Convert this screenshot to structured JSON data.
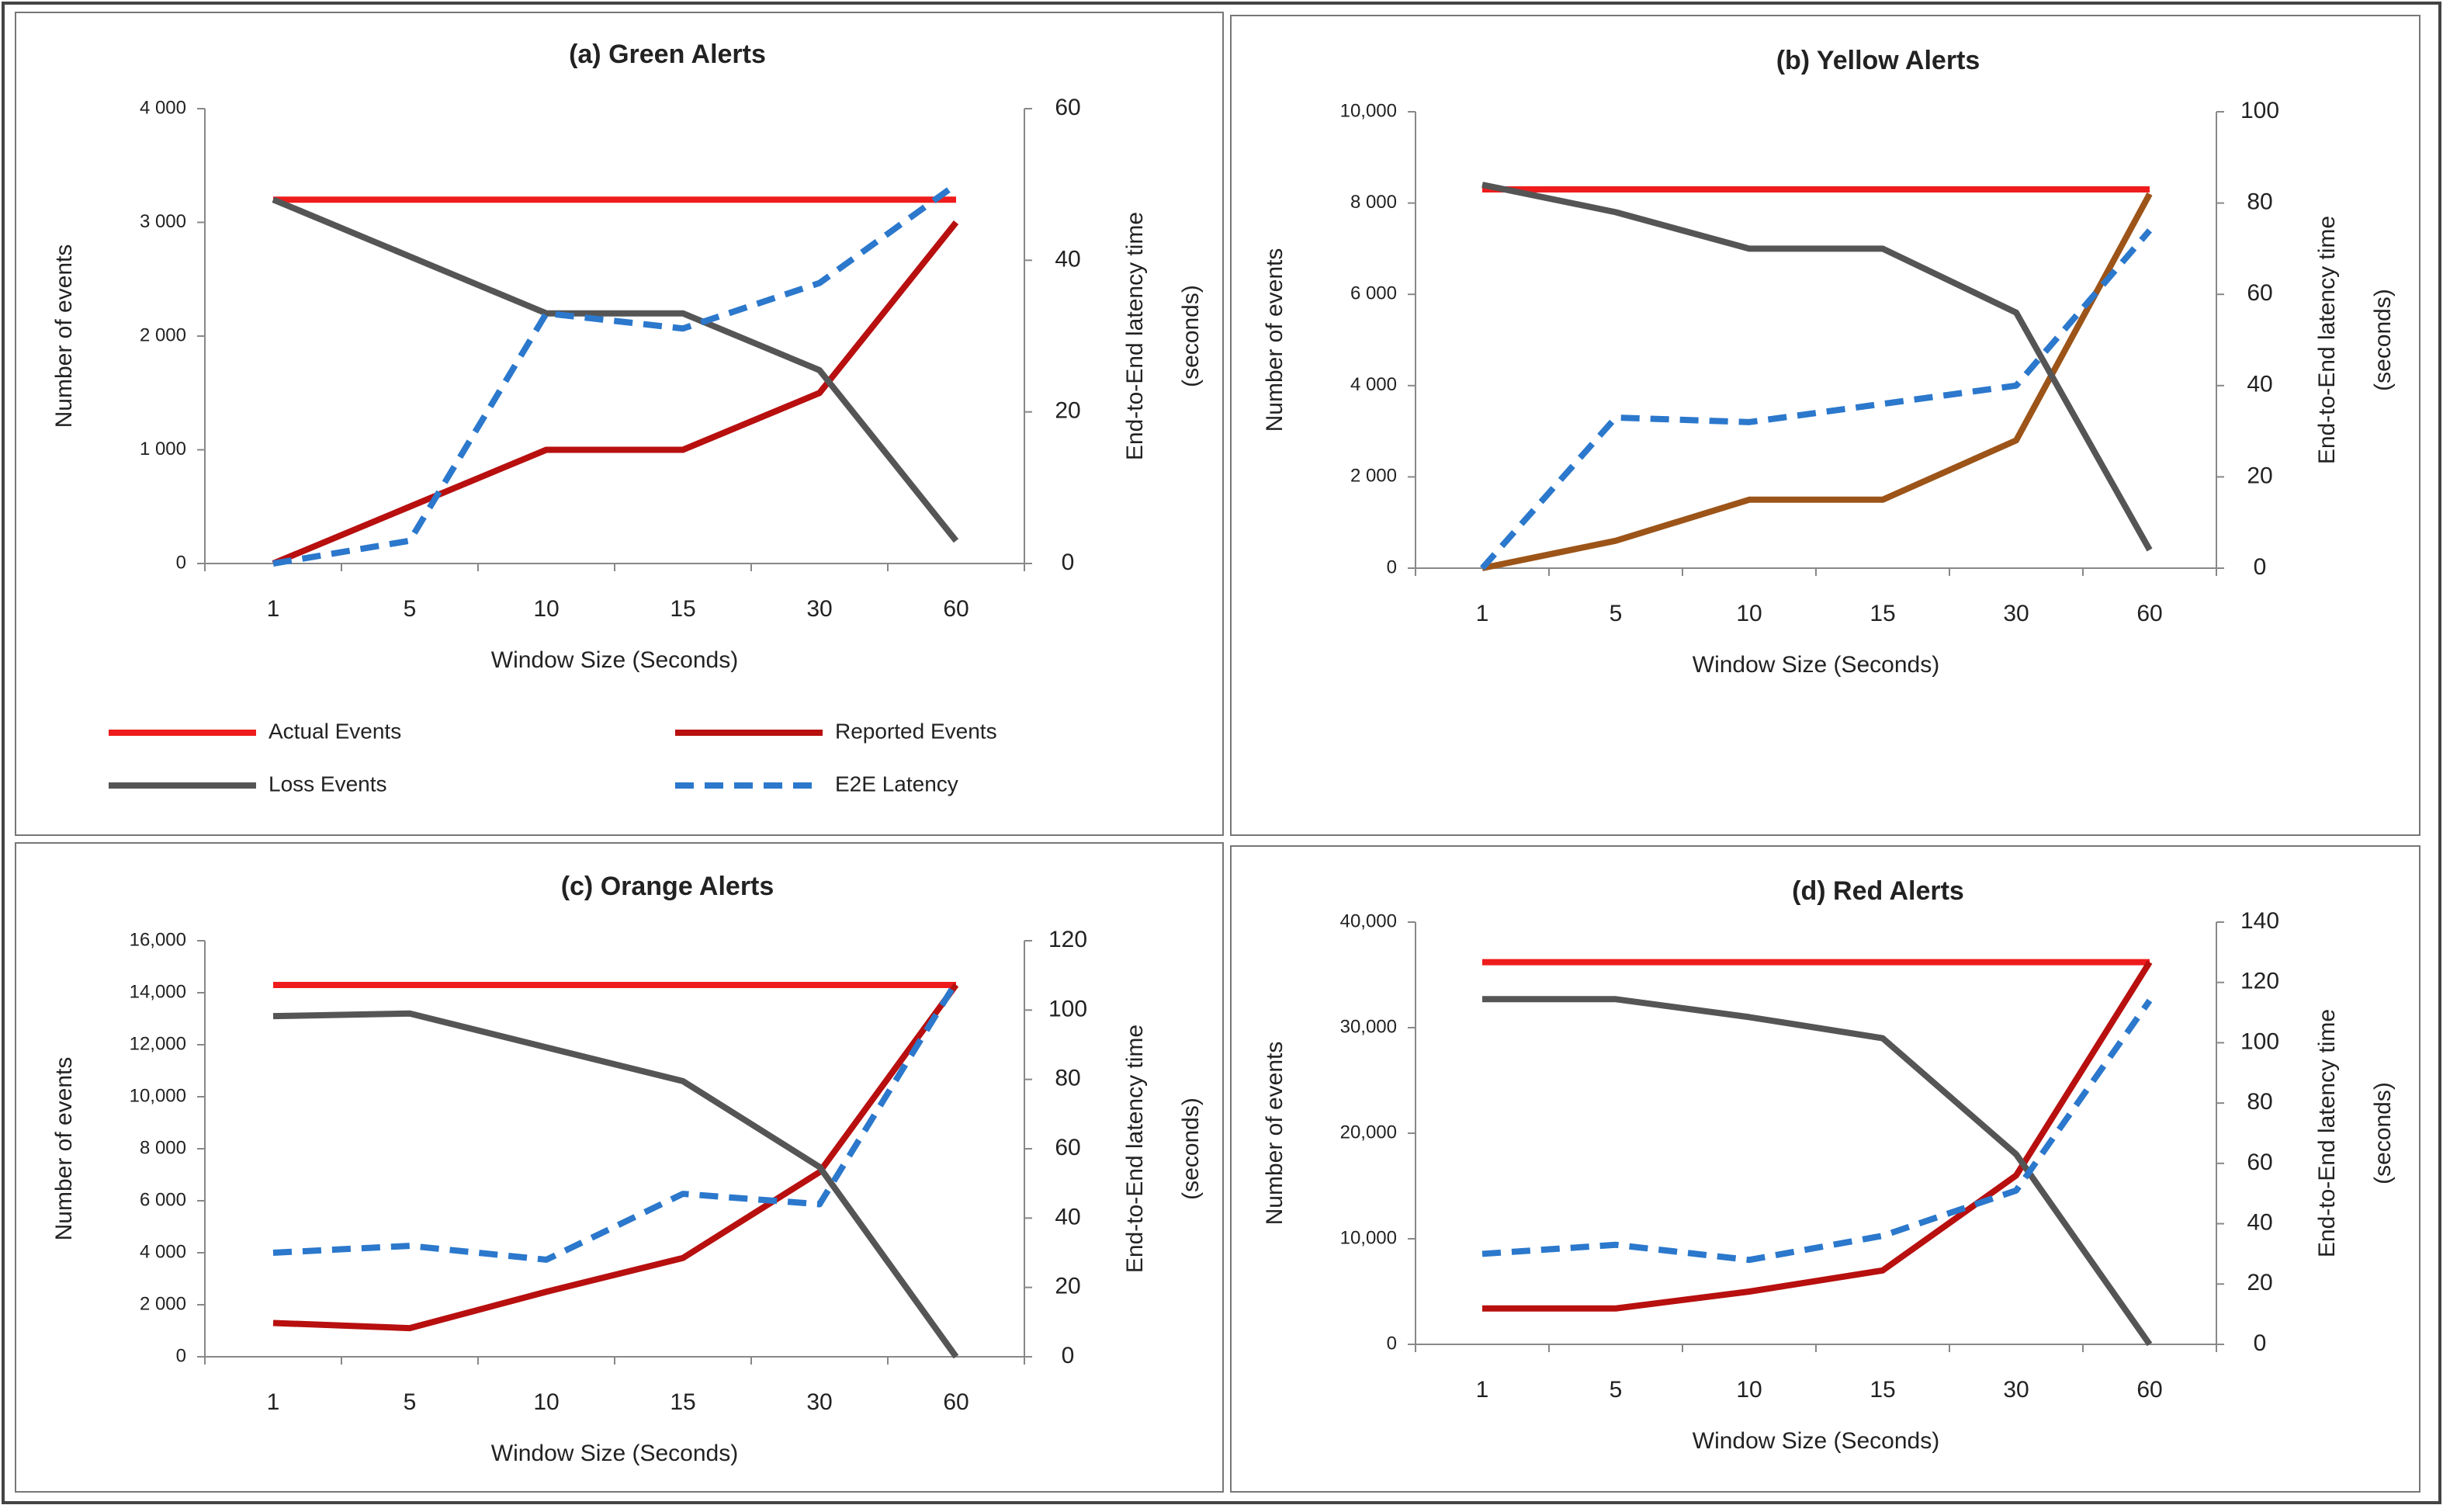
{
  "chart_data": [
    {
      "type": "line",
      "title": "(a) Green Alerts",
      "xlabel": "Window Size (Seconds)",
      "ylabel": "Number of events",
      "y2label": [
        "End-to-End latency time",
        "(seconds)"
      ],
      "categories": [
        "1",
        "5",
        "10",
        "15",
        "30",
        "60"
      ],
      "ylim": [
        0,
        4000
      ],
      "yticks": [
        0,
        {
          "value": 1000,
          "label": "1 000"
        },
        {
          "value": 2000,
          "label": "2 000"
        },
        {
          "value": 3000,
          "label": "3 000"
        },
        {
          "value": 4000,
          "label": "4 000"
        }
      ],
      "y2lim": [
        0,
        60
      ],
      "y2ticks": [
        0,
        20,
        40,
        60
      ],
      "legend": "bottom",
      "series": [
        {
          "name": "Actual Events",
          "color": "#ee1c1c",
          "values": [
            3200,
            3200,
            3200,
            3200,
            3200,
            3200
          ]
        },
        {
          "name": "Reported Events",
          "color": "#b80f0f",
          "values": [
            0,
            500,
            1000,
            1000,
            1500,
            3000
          ]
        },
        {
          "name": "Loss Events",
          "color": "#555555",
          "values": [
            3200,
            2700,
            2200,
            2200,
            1700,
            200
          ]
        },
        {
          "name": "E2E Latency",
          "color": "#2b78cc",
          "dashed": true,
          "axis": "y2",
          "values": [
            0,
            3,
            33,
            31,
            37,
            50
          ]
        }
      ]
    },
    {
      "type": "line",
      "title": "(b) Yellow Alerts",
      "xlabel": "Window Size (Seconds)",
      "ylabel": "Number of events",
      "y2label": [
        "End-to-End latency time",
        "(seconds)"
      ],
      "categories": [
        "1",
        "5",
        "10",
        "15",
        "30",
        "60"
      ],
      "ylim": [
        0,
        10000
      ],
      "yticks": [
        0,
        {
          "value": 2000,
          "label": "2 000"
        },
        {
          "value": 4000,
          "label": "4 000"
        },
        {
          "value": 6000,
          "label": "6 000"
        },
        {
          "value": 8000,
          "label": "8 000"
        },
        {
          "value": 10000,
          "label": "10,000"
        }
      ],
      "y2lim": [
        0,
        100
      ],
      "y2ticks": [
        0,
        20,
        40,
        60,
        80,
        100
      ],
      "series": [
        {
          "name": "Actual Events",
          "color": "#ee1c1c",
          "values": [
            8300,
            8300,
            8300,
            8300,
            8300,
            8300
          ]
        },
        {
          "name": "Reported Events",
          "color": "#9c5418",
          "values": [
            0,
            600,
            1500,
            1500,
            2800,
            8200
          ]
        },
        {
          "name": "Loss Events",
          "color": "#555555",
          "values": [
            8400,
            7800,
            7000,
            7000,
            5600,
            400
          ]
        },
        {
          "name": "E2E Latency",
          "color": "#2b78cc",
          "dashed": true,
          "axis": "y2",
          "values": [
            0,
            33,
            32,
            36,
            40,
            74
          ]
        }
      ]
    },
    {
      "type": "line",
      "title": "(c) Orange Alerts",
      "xlabel": "Window Size (Seconds)",
      "ylabel": "Number of events",
      "y2label": [
        "End-to-End latency time",
        "(seconds)"
      ],
      "categories": [
        "1",
        "5",
        "10",
        "15",
        "30",
        "60"
      ],
      "ylim": [
        0,
        16000
      ],
      "yticks": [
        0,
        {
          "value": 2000,
          "label": "2 000"
        },
        {
          "value": 4000,
          "label": "4 000"
        },
        {
          "value": 6000,
          "label": "6 000"
        },
        {
          "value": 8000,
          "label": "8 000"
        },
        {
          "value": 10000,
          "label": "10,000"
        },
        {
          "value": 12000,
          "label": "12,000"
        },
        {
          "value": 14000,
          "label": "14,000"
        },
        {
          "value": 16000,
          "label": "16,000"
        }
      ],
      "y2lim": [
        0,
        120
      ],
      "y2ticks": [
        0,
        20,
        40,
        60,
        80,
        100,
        120
      ],
      "series": [
        {
          "name": "Actual Events",
          "color": "#ee1c1c",
          "values": [
            14300,
            14300,
            14300,
            14300,
            14300,
            14300
          ]
        },
        {
          "name": "Reported Events",
          "color": "#b80f0f",
          "values": [
            1300,
            1100,
            2500,
            3800,
            7100,
            14300
          ]
        },
        {
          "name": "Loss Events",
          "color": "#555555",
          "values": [
            13100,
            13200,
            11900,
            10600,
            7300,
            0
          ]
        },
        {
          "name": "E2E Latency",
          "color": "#2b78cc",
          "dashed": true,
          "axis": "y2",
          "values": [
            30,
            32,
            28,
            47,
            44,
            108
          ]
        }
      ]
    },
    {
      "type": "line",
      "title": "(d) Red Alerts",
      "xlabel": "Window Size (Seconds)",
      "ylabel": "Number of events",
      "y2label": [
        "End-to-End latency time",
        "(seconds)"
      ],
      "categories": [
        "1",
        "5",
        "10",
        "15",
        "30",
        "60"
      ],
      "ylim": [
        0,
        40000
      ],
      "yticks": [
        0,
        {
          "value": 10000,
          "label": "10,000"
        },
        {
          "value": 20000,
          "label": "20,000"
        },
        {
          "value": 30000,
          "label": "30,000"
        },
        {
          "value": 40000,
          "label": "40,000"
        }
      ],
      "y2lim": [
        0,
        140
      ],
      "y2ticks": [
        0,
        20,
        40,
        60,
        80,
        100,
        120,
        140
      ],
      "series": [
        {
          "name": "Actual Events",
          "color": "#ee1c1c",
          "values": [
            36200,
            36200,
            36200,
            36200,
            36200,
            36200
          ]
        },
        {
          "name": "Reported Events",
          "color": "#b80f0f",
          "values": [
            3400,
            3400,
            5000,
            7000,
            16000,
            36200
          ]
        },
        {
          "name": "Loss Events",
          "color": "#555555",
          "values": [
            32700,
            32700,
            31000,
            29000,
            18000,
            0
          ]
        },
        {
          "name": "E2E Latency",
          "color": "#2b78cc",
          "dashed": true,
          "axis": "y2",
          "values": [
            30,
            33,
            28,
            36,
            51,
            114
          ]
        }
      ]
    }
  ]
}
